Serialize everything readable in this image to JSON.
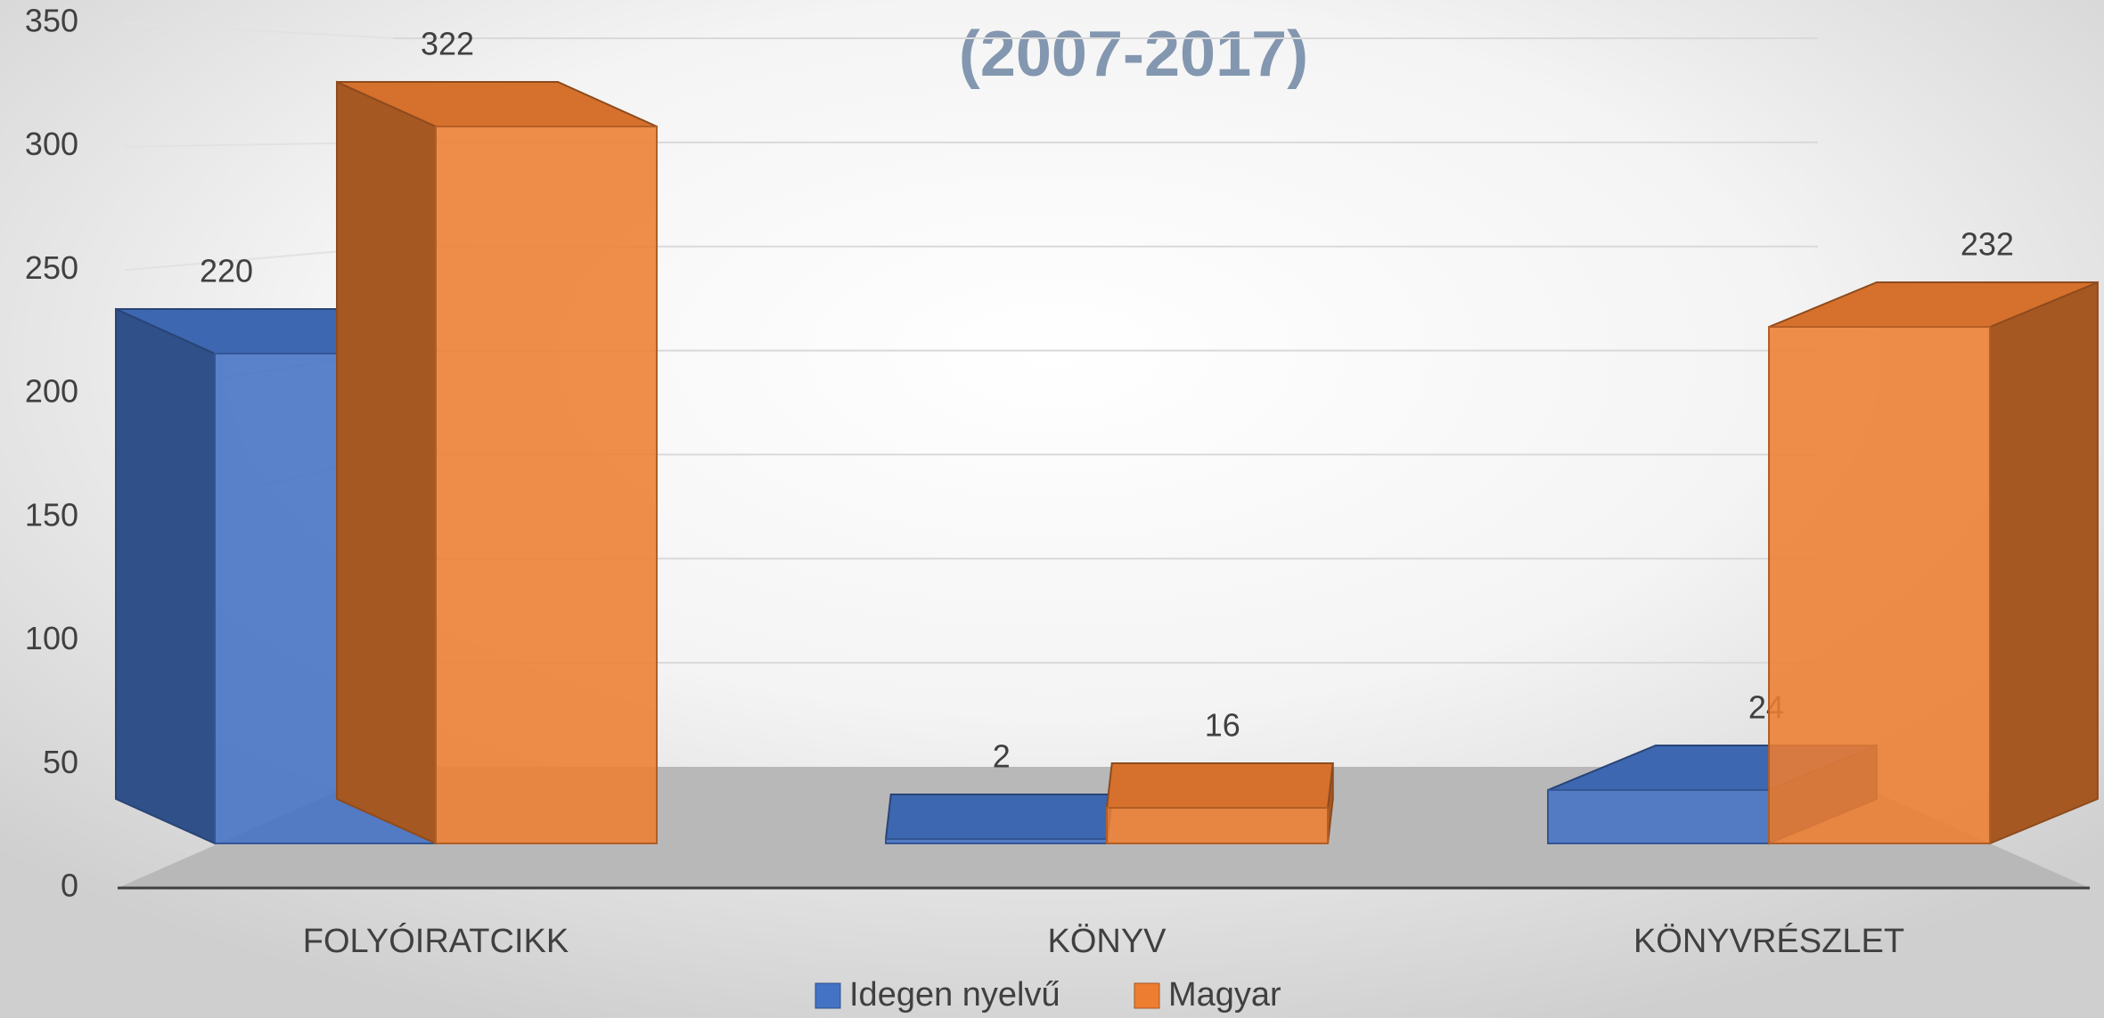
{
  "chart_data": {
    "type": "bar3d",
    "title": "(2007-2017)",
    "categories": [
      "FOLYÓIRATCIKK",
      "KÖNYV",
      "KÖNYVRÉSZLET"
    ],
    "series": [
      {
        "name": "Idegen nyelvű",
        "color": "#4472c4",
        "values": [
          220,
          2,
          24
        ]
      },
      {
        "name": "Magyar",
        "color": "#ed7d31",
        "values": [
          322,
          16,
          232
        ]
      }
    ],
    "ylim": [
      0,
      350
    ],
    "yticks": [
      0,
      50,
      100,
      150,
      200,
      250,
      300,
      350
    ],
    "grid": true,
    "legend": "bottom"
  }
}
